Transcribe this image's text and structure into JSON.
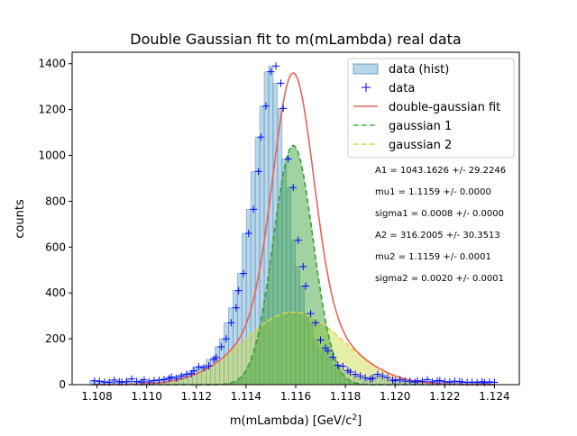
{
  "chart_data": {
    "type": "bar",
    "title": "Double Gaussian fit to m(mLambda) real data",
    "xlabel_main": "m(mLambda) [GeV/c",
    "xlabel_sup": "2",
    "xlabel_close": "]",
    "ylabel": "counts",
    "xlim": [
      1.107,
      1.125
    ],
    "ylim": [
      0,
      1450
    ],
    "grid": false,
    "legend_placement": "upper right",
    "x_ticks": [
      1.108,
      1.11,
      1.112,
      1.114,
      1.116,
      1.118,
      1.12,
      1.122,
      1.124
    ],
    "x_tick_labels": [
      "1.108",
      "1.110",
      "1.112",
      "1.114",
      "1.116",
      "1.118",
      "1.120",
      "1.122",
      "1.124"
    ],
    "y_ticks": [
      0,
      200,
      400,
      600,
      800,
      1000,
      1200,
      1400
    ],
    "y_tick_labels": [
      "0",
      "200",
      "400",
      "600",
      "800",
      "1000",
      "1200",
      "1400"
    ],
    "bins": {
      "start": 1.1078,
      "end": 1.124,
      "count": 90
    },
    "data_points": {
      "x": [
        1.1079,
        1.1081,
        1.1083,
        1.1085,
        1.1087,
        1.1089,
        1.109,
        1.1092,
        1.1094,
        1.1096,
        1.1098,
        1.1099,
        1.1101,
        1.1103,
        1.1105,
        1.1107,
        1.1109,
        1.111,
        1.1112,
        1.1114,
        1.1116,
        1.1118,
        1.1119,
        1.1121,
        1.1123,
        1.1125,
        1.1127,
        1.1128,
        1.113,
        1.1132,
        1.1134,
        1.1136,
        1.1137,
        1.1139,
        1.1141,
        1.1143,
        1.1145,
        1.1146,
        1.1148,
        1.115,
        1.1152,
        1.1154,
        1.1155,
        1.1157,
        1.1159,
        1.1161,
        1.1163,
        1.1164,
        1.1166,
        1.1168,
        1.117,
        1.1172,
        1.1173,
        1.1175,
        1.1177,
        1.1179,
        1.1181,
        1.1182,
        1.1184,
        1.1186,
        1.1188,
        1.119,
        1.1191,
        1.1193,
        1.1195,
        1.1197,
        1.1199,
        1.12,
        1.1202,
        1.1204,
        1.1206,
        1.1208,
        1.1209,
        1.1211,
        1.1213,
        1.1215,
        1.1217,
        1.1218,
        1.122,
        1.1222,
        1.1224,
        1.1226,
        1.1227,
        1.1229,
        1.1231,
        1.1233,
        1.1235,
        1.1236,
        1.1238,
        1.124
      ],
      "y": [
        17,
        15,
        12,
        10,
        20,
        13,
        11,
        13,
        25,
        14,
        11,
        21,
        12,
        18,
        20,
        22,
        27,
        33,
        28,
        38,
        45,
        48,
        60,
        78,
        74,
        82,
        110,
        118,
        165,
        200,
        270,
        335,
        410,
        485,
        660,
        765,
        930,
        1080,
        1215,
        1365,
        1390,
        1315,
        1205,
        985,
        860,
        630,
        515,
        430,
        310,
        270,
        195,
        160,
        148,
        120,
        85,
        80,
        62,
        55,
        45,
        38,
        30,
        24,
        28,
        45,
        38,
        30,
        20,
        17,
        22,
        16,
        15,
        11,
        17,
        14,
        22,
        12,
        17,
        18,
        13,
        11,
        15,
        13,
        12,
        10,
        11,
        9,
        13,
        8,
        12,
        10
      ]
    },
    "series": [
      {
        "name": "data (hist)",
        "kind": "histogram",
        "color": "#1f77b4"
      },
      {
        "name": "data",
        "kind": "points",
        "marker": "+",
        "color": "#0000ff"
      },
      {
        "name": "double-gaussian fit",
        "kind": "line",
        "color": "#e8625a"
      },
      {
        "name": "gaussian 1",
        "kind": "line",
        "dash": true,
        "color": "#4cb84c",
        "A": 1043.1626,
        "mu": 1.1159,
        "sigma": 0.0008
      },
      {
        "name": "gaussian 2",
        "kind": "line",
        "dash": true,
        "color": "#d9d94c",
        "A": 316.2005,
        "mu": 1.1159,
        "sigma": 0.002
      }
    ],
    "annotations": [
      "A1 = 1043.1626 +/- 29.2246",
      "mu1 = 1.1159 +/- 0.0000",
      "sigma1 = 0.0008 +/- 0.0000",
      "A2 = 316.2005 +/- 30.3513",
      "mu2 = 1.1159 +/- 0.0001",
      "sigma2 = 0.0020 +/- 0.0001"
    ]
  }
}
